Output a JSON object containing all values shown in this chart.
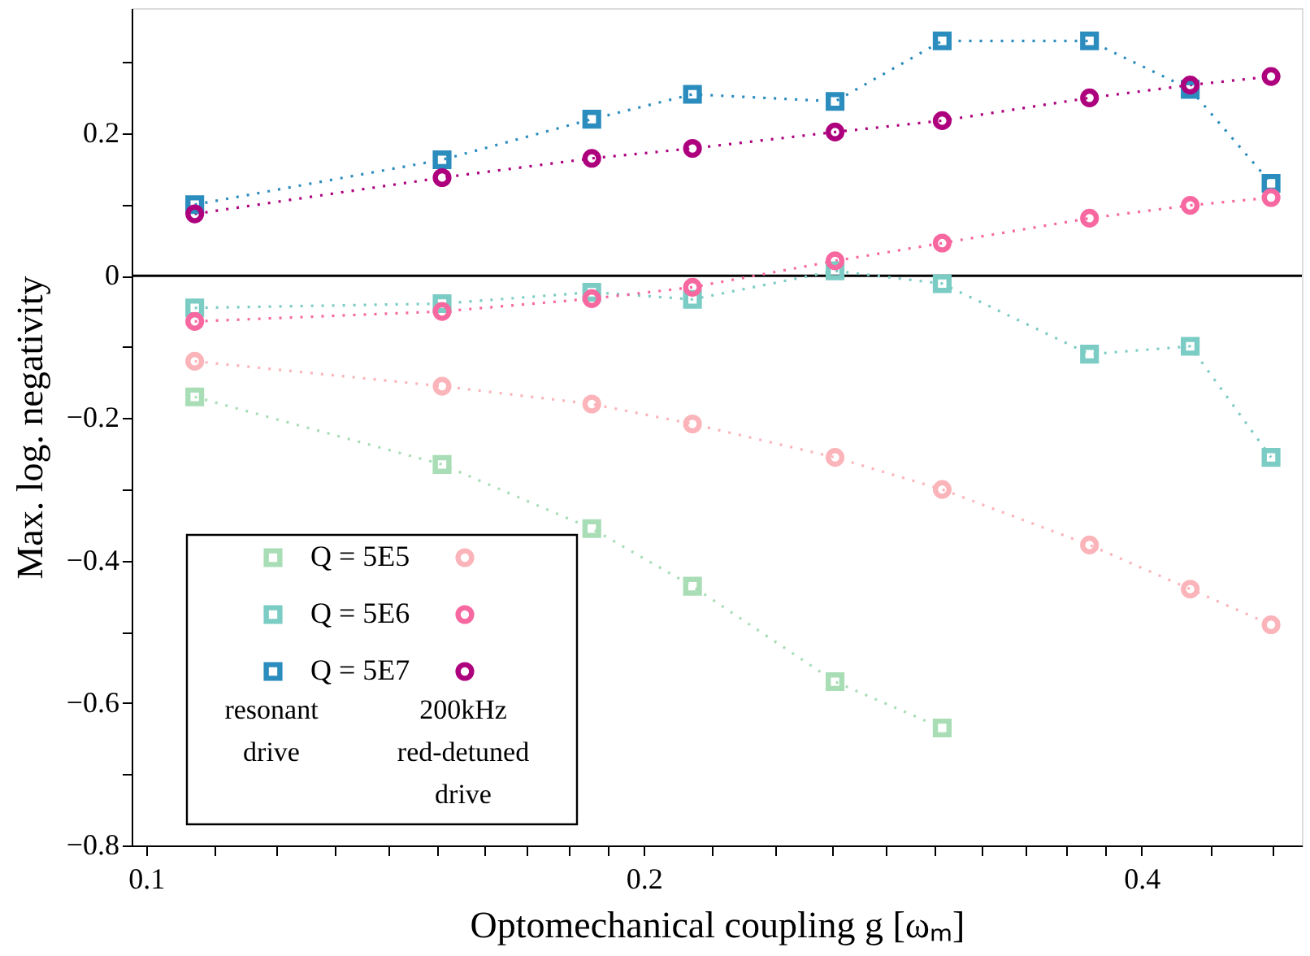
{
  "chart_data": {
    "type": "line",
    "xlabel": "Optomechanical coupling g [ωₘ]",
    "ylabel": "Max. log. negativity",
    "x": [
      0.107,
      0.151,
      0.186,
      0.214,
      0.261,
      0.303,
      0.372,
      0.428,
      0.479
    ],
    "series": [
      {
        "name": "Q = 5E5",
        "color": "#a8ddb5",
        "marker": "square",
        "values": [
          -0.17,
          -0.265,
          -0.355,
          -0.436,
          -0.57,
          -0.635,
          null,
          null,
          null
        ]
      },
      {
        "name": "Q = 5E6",
        "color": "#7bccc4",
        "marker": "square",
        "values": [
          -0.045,
          -0.039,
          -0.023,
          -0.033,
          0.007,
          -0.011,
          -0.11,
          -0.099,
          -0.255
        ]
      },
      {
        "name": "Q = 5E7",
        "color": "#2b8cbe",
        "marker": "square",
        "values": [
          0.1,
          0.163,
          0.22,
          0.255,
          0.245,
          0.33,
          0.33,
          0.262,
          0.13
        ]
      },
      {
        "color": "#fbb4b9",
        "marker": "circle",
        "values": [
          -0.12,
          -0.155,
          -0.18,
          -0.208,
          -0.255,
          -0.3,
          -0.378,
          -0.44,
          -0.49
        ]
      },
      {
        "color": "#f768a1",
        "marker": "circle",
        "values": [
          -0.064,
          -0.05,
          -0.032,
          -0.016,
          0.021,
          0.046,
          0.081,
          0.099,
          0.11
        ]
      },
      {
        "color": "#ae017e",
        "marker": "circle",
        "values": [
          0.087,
          0.138,
          0.165,
          0.179,
          0.202,
          0.218,
          0.25,
          0.268,
          0.28
        ]
      }
    ],
    "line_style": "dotted",
    "log": "x",
    "grid": false,
    "legend": "bottom left",
    "xlim": [
      0.098,
      0.5
    ],
    "xticks": [
      0.1,
      {
        "value": 0.11,
        "label": null
      },
      {
        "value": 0.12,
        "label": null
      },
      {
        "value": 0.13,
        "label": null
      },
      {
        "value": 0.14,
        "label": null
      },
      {
        "value": 0.15,
        "label": null
      },
      {
        "value": 0.16,
        "label": null
      },
      {
        "value": 0.17,
        "label": null
      },
      {
        "value": 0.18,
        "label": null
      },
      {
        "value": 0.19,
        "label": null
      },
      0.2,
      {
        "value": 0.22,
        "label": null
      },
      {
        "value": 0.24,
        "label": null
      },
      {
        "value": 0.26,
        "label": null
      },
      {
        "value": 0.28,
        "label": null
      },
      {
        "value": 0.3,
        "label": null
      },
      {
        "value": 0.32,
        "label": null
      },
      {
        "value": 0.34,
        "label": null
      },
      {
        "value": 0.36,
        "label": null
      },
      {
        "value": 0.38,
        "label": null
      },
      0.4,
      {
        "value": 0.44,
        "label": null
      },
      {
        "value": 0.48,
        "label": null
      }
    ],
    "ylim": [
      -0.8,
      0.376
    ],
    "yticks": [
      -0.8,
      {
        "value": -0.7,
        "label": null
      },
      -0.6,
      {
        "value": -0.5,
        "label": null
      },
      -0.4,
      {
        "value": -0.3,
        "label": null
      },
      -0.2,
      {
        "value": -0.1,
        "label": null
      },
      0,
      {
        "value": 0.1,
        "label": null
      },
      0.2,
      {
        "value": 0.3,
        "label": null
      }
    ],
    "ref_lines": [
      {
        "axis": "y",
        "value": 0,
        "color": "#000000"
      }
    ],
    "annotations": [
      "resonant drive",
      "200kHz red-detuned drive"
    ]
  }
}
